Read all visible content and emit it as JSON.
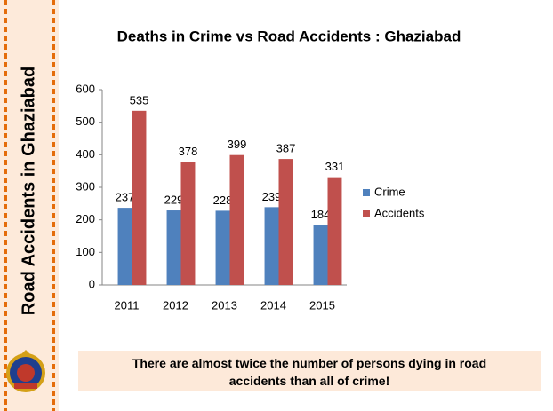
{
  "sidebar_title": "Road Accidents in Ghaziabad",
  "note": "There are almost twice the number of persons dying in road accidents than all of crime!",
  "chart_data": {
    "type": "bar",
    "title": "Deaths in Crime vs Road Accidents  : Ghaziabad",
    "categories": [
      "2011",
      "2012",
      "2013",
      "2014",
      "2015"
    ],
    "series": [
      {
        "name": "Crime",
        "color": "#4f81bd",
        "values": [
          237,
          229,
          228,
          239,
          184
        ]
      },
      {
        "name": "Accidents",
        "color": "#c0504d",
        "values": [
          535,
          378,
          399,
          387,
          331
        ]
      }
    ],
    "ylim": [
      0,
      600
    ],
    "yticks": [
      0,
      100,
      200,
      300,
      400,
      500,
      600
    ],
    "grid": false,
    "legend": "right"
  }
}
